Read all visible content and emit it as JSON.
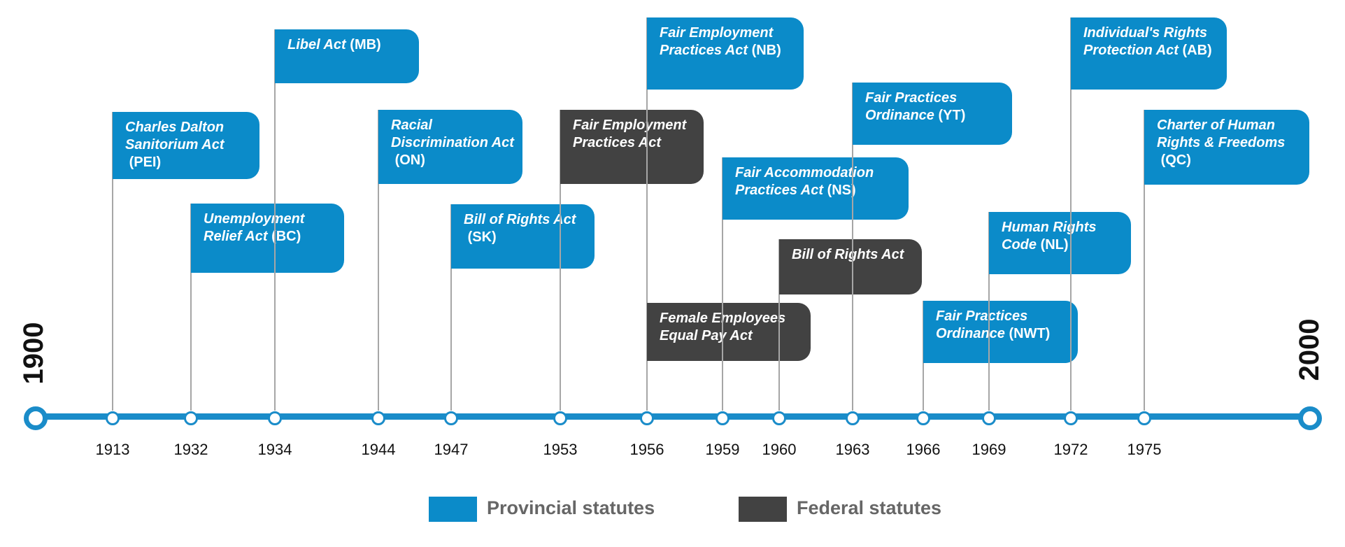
{
  "start_year": "1900",
  "end_year": "2000",
  "colors": {
    "provincial": "#0b8bc9",
    "federal": "#424242",
    "axis": "#1a8cc9"
  },
  "legend": {
    "provincial_label": "Provincial statutes",
    "federal_label": "Federal statutes"
  },
  "years": [
    "1913",
    "1932",
    "1934",
    "1944",
    "1947",
    "1953",
    "1956",
    "1959",
    "1960",
    "1963",
    "1966",
    "1969",
    "1972",
    "1975"
  ],
  "events": [
    {
      "year": "1913",
      "title": "Charles Dalton Sanitorium Act",
      "abbr": "(PEI)",
      "level": "provincial"
    },
    {
      "year": "1932",
      "title": "Unemployment Relief Act",
      "abbr": "(BC)",
      "level": "provincial"
    },
    {
      "year": "1934",
      "title": "Libel Act",
      "abbr": "(MB)",
      "level": "provincial"
    },
    {
      "year": "1944",
      "title": "Racial Discrimination Act",
      "abbr": "(ON)",
      "level": "provincial"
    },
    {
      "year": "1947",
      "title": "Bill of Rights Act",
      "abbr": "(SK)",
      "level": "provincial"
    },
    {
      "year": "1953",
      "title": "Fair Employment Practices Act",
      "abbr": "",
      "level": "federal"
    },
    {
      "year": "1956",
      "title": "Fair Employment Practices Act",
      "abbr": "(NB)",
      "level": "provincial"
    },
    {
      "year": "1956",
      "title": "Female Employees Equal Pay Act",
      "abbr": "",
      "level": "federal"
    },
    {
      "year": "1959",
      "title": "Fair Accommodation Practices Act",
      "abbr": "(NS)",
      "level": "provincial"
    },
    {
      "year": "1960",
      "title": "Bill of Rights Act",
      "abbr": "",
      "level": "federal"
    },
    {
      "year": "1963",
      "title": "Fair Practices Ordinance",
      "abbr": "(YT)",
      "level": "provincial"
    },
    {
      "year": "1966",
      "title": "Fair Practices Ordinance",
      "abbr": "(NWT)",
      "level": "provincial"
    },
    {
      "year": "1969",
      "title": "Human Rights Code",
      "abbr": "(NL)",
      "level": "provincial"
    },
    {
      "year": "1972",
      "title": "Individual's Rights Protection Act",
      "abbr": "(AB)",
      "level": "provincial"
    },
    {
      "year": "1975",
      "title": "Charter of Human Rights & Freedoms",
      "abbr": "(QC)",
      "level": "provincial"
    }
  ]
}
